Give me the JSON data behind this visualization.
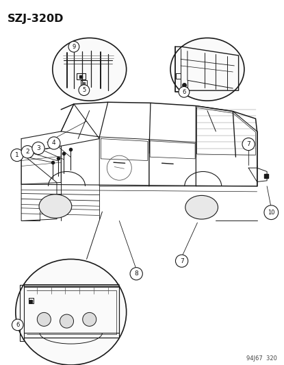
{
  "title": "SZJ-320D",
  "watermark": "94J67  320",
  "bg": "#ffffff",
  "lc": "#1a1a1a",
  "fig_w": 4.15,
  "fig_h": 5.33,
  "dpi": 100
}
